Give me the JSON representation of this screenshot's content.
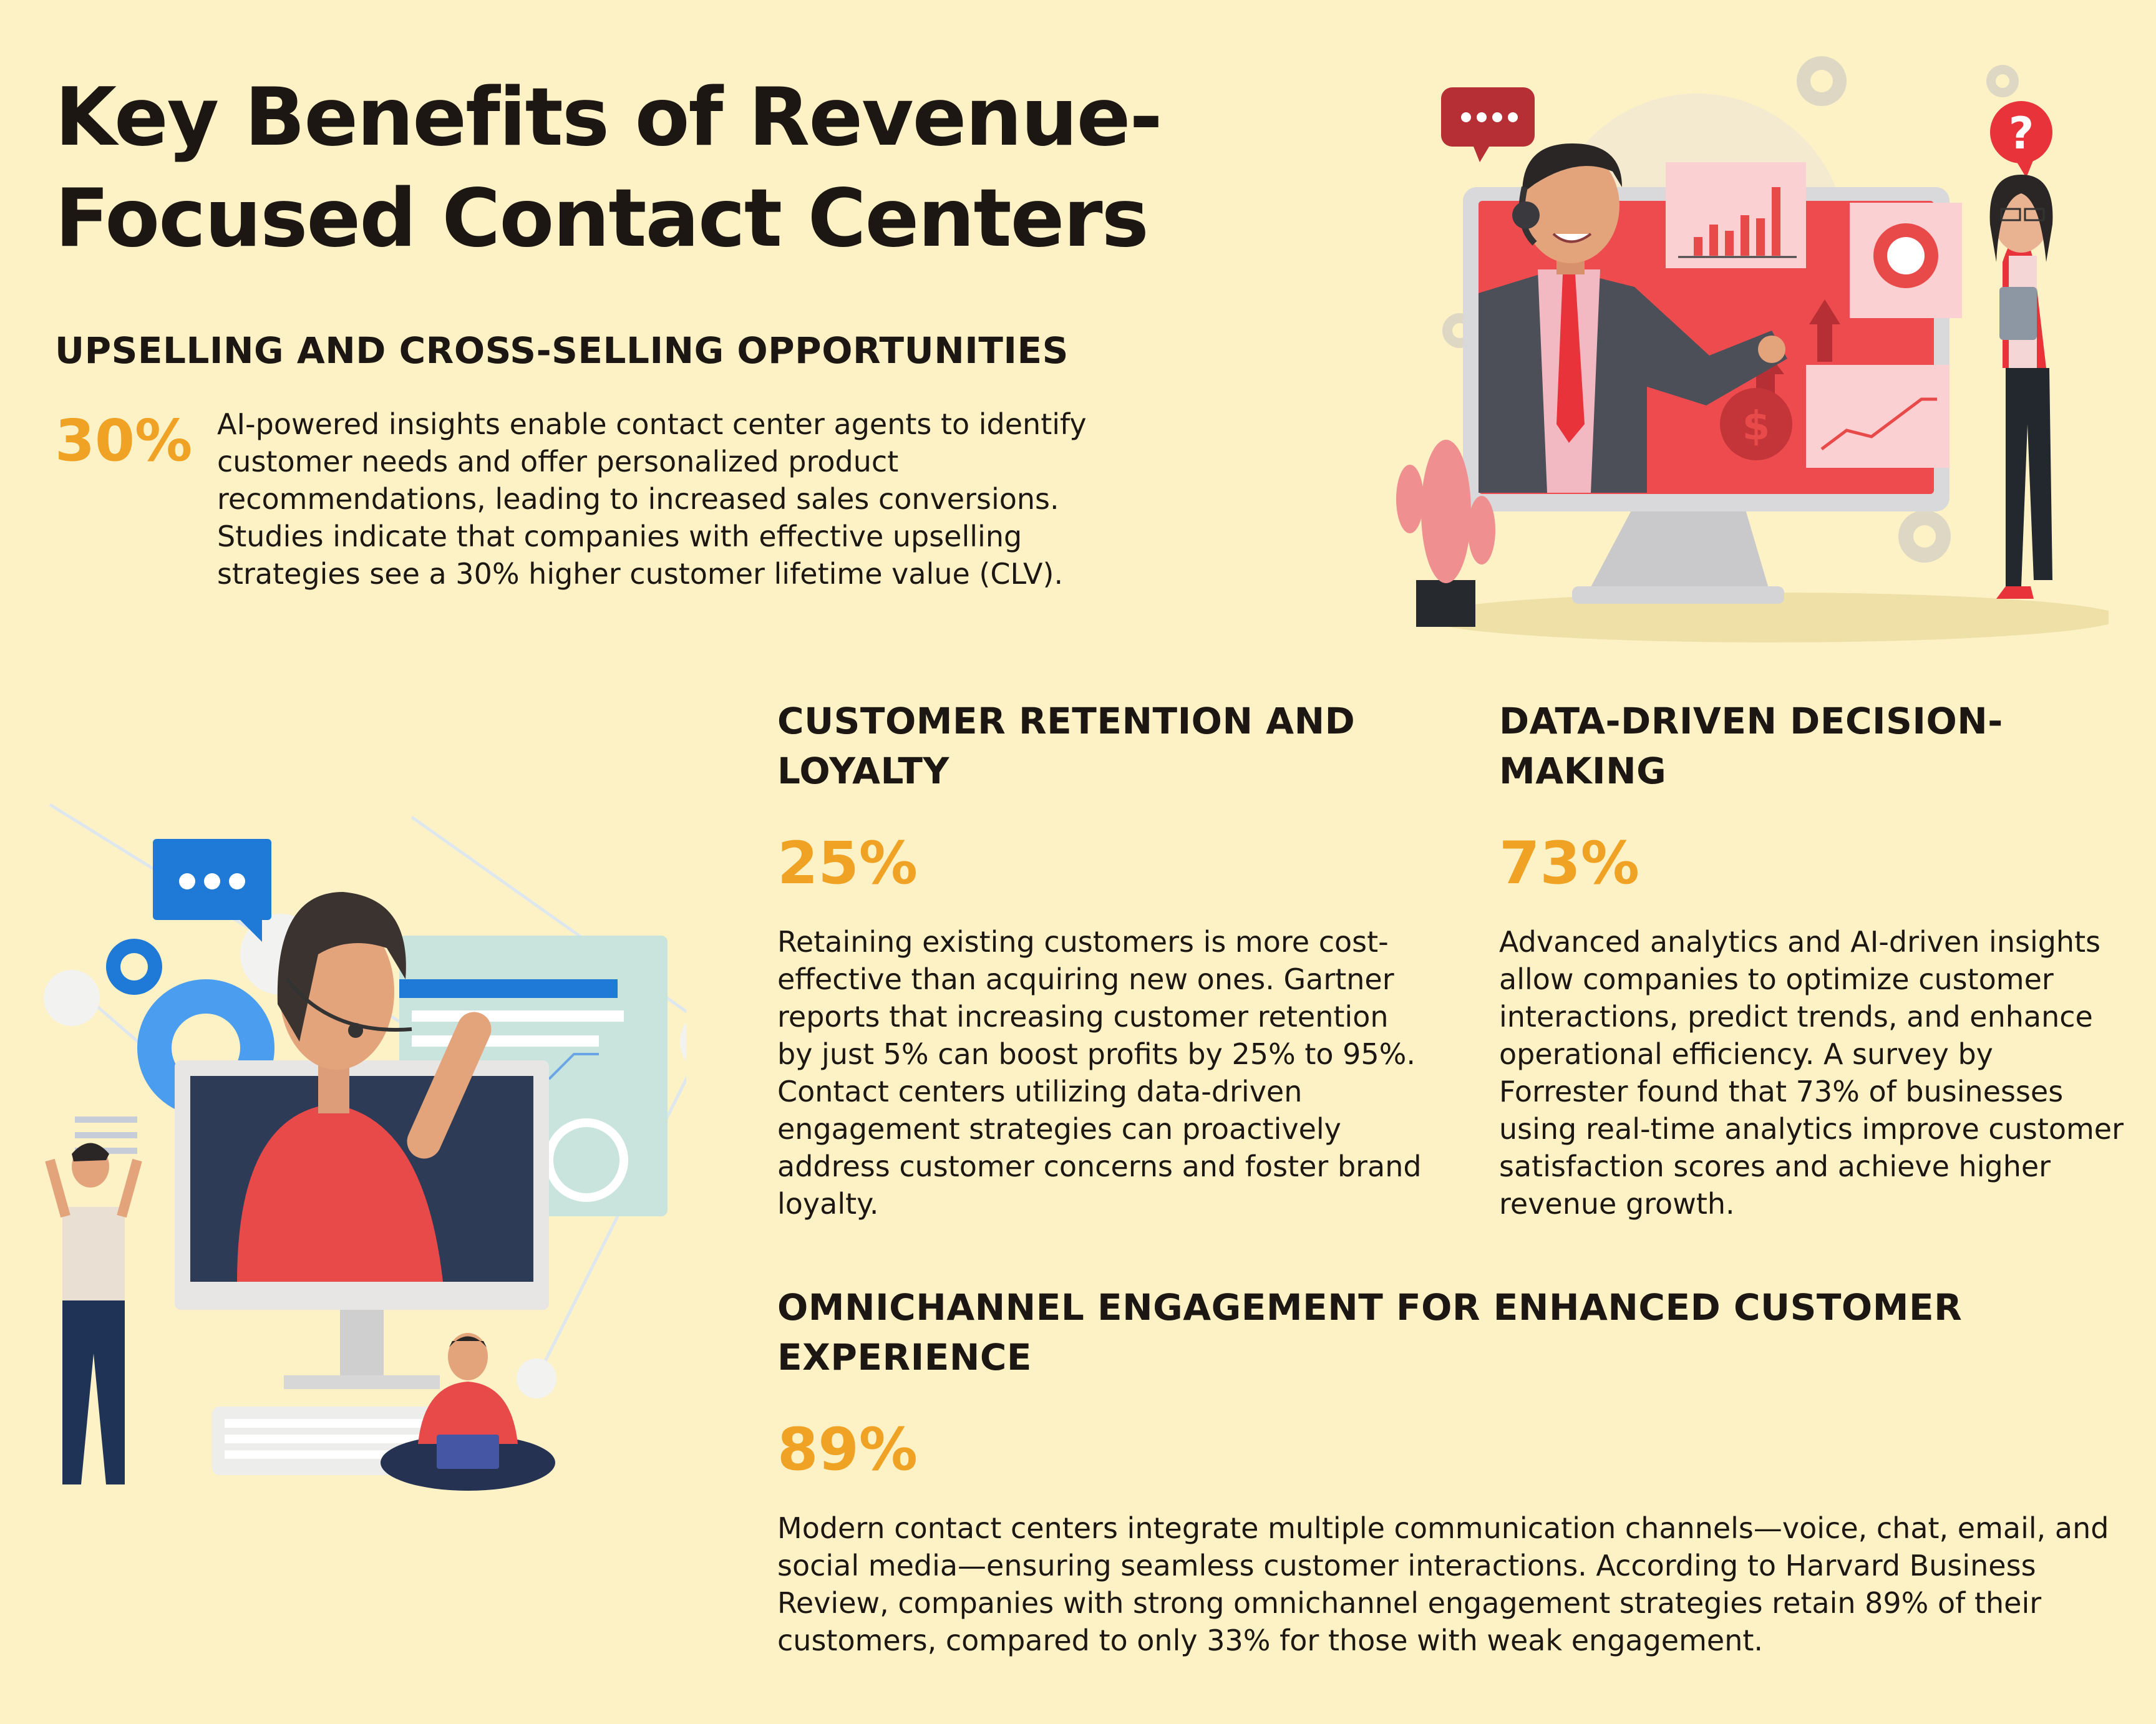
{
  "title": "Key Benefits of Revenue-Focused Contact Centers",
  "sections": {
    "upselling": {
      "heading": "UPSELLING AND CROSS-SELLING OPPORTUNITIES",
      "stat": "30%",
      "body": "AI-powered insights enable contact center agents to identify customer needs and offer personalized product recommendations, leading to increased sales conversions. Studies indicate that companies with effective upselling strategies see a 30% higher customer lifetime value (CLV)."
    },
    "retention": {
      "heading": "CUSTOMER RETENTION AND LOYALTY",
      "stat": "25%",
      "body": "Retaining existing customers is more cost-effective than acquiring new ones. Gartner reports that increasing customer retention by just 5% can boost profits by 25% to 95%. Contact centers utilizing data-driven engagement strategies can proactively address customer concerns and foster brand loyalty."
    },
    "data_driven": {
      "heading": "DATA-DRIVEN DECISION-MAKING",
      "stat": "73%",
      "body": "Advanced analytics and AI-driven insights allow companies to optimize customer interactions, predict trends, and enhance operational efficiency. A survey by Forrester found that 73% of businesses using real-time analytics improve customer satisfaction scores and achieve higher revenue growth."
    },
    "omnichannel": {
      "heading": "OMNICHANNEL ENGAGEMENT FOR ENHANCED CUSTOMER EXPERIENCE",
      "stat": "89%",
      "body": "Modern contact centers integrate multiple communication channels—voice, chat, email, and social media—ensuring seamless customer interactions. According to Harvard Business Review, companies with strong omnichannel engagement strategies retain 89% of their customers, compared to only 33% for those with weak engagement."
    }
  },
  "illustrations": {
    "top_right": "agent-presenting-sales-charts-illustration",
    "question_mark": "?",
    "left": "support-agent-on-monitor-illustration"
  },
  "colors": {
    "background": "#fdf2c6",
    "accent": "#efa224",
    "text": "#1c1712",
    "red": "#e84a4a",
    "blue": "#1e7ad6"
  }
}
